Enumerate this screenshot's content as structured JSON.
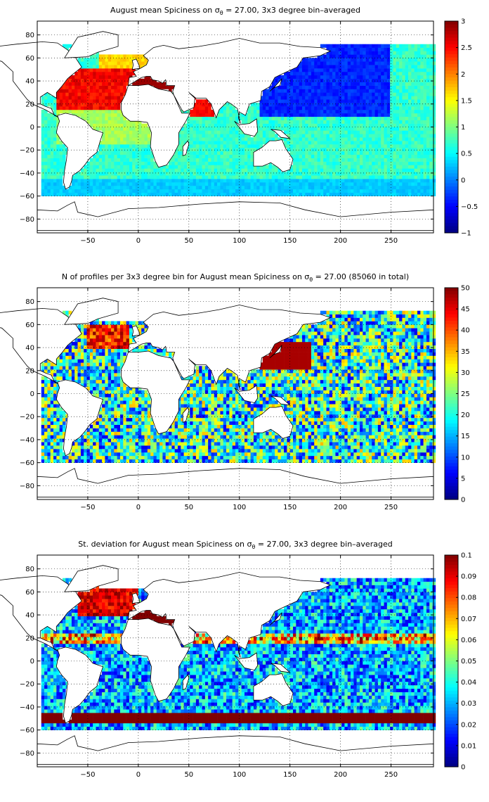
{
  "chart_data": [
    {
      "type": "heatmap",
      "title_main": "August mean Spiciness on ",
      "title_sigma": "σ",
      "title_sub": "θ",
      "title_rest": " = 27.00, 3x3 degree bin–averaged",
      "xlim": [
        -100,
        292
      ],
      "ylim": [
        -92,
        92
      ],
      "xticks": [
        -50,
        0,
        50,
        100,
        150,
        200,
        250
      ],
      "xticklabels": [
        "−50",
        "0",
        "50",
        "100",
        "150",
        "200",
        "250"
      ],
      "yticks": [
        80,
        60,
        40,
        20,
        0,
        -20,
        -40,
        -60,
        -80
      ],
      "yticklabels": [
        "80",
        "60",
        "40",
        "20",
        "0",
        "−20",
        "−40",
        "−60",
        "−80"
      ],
      "grid": true,
      "colormap": "jet",
      "clim": [
        -1,
        3
      ],
      "cticks": [
        3,
        2.5,
        2,
        1.5,
        1,
        0.5,
        0,
        -0.5,
        -1
      ],
      "cticklabels": [
        "3",
        "2.5",
        "2",
        "1.5",
        "1",
        "0.5",
        "0",
        "−0.5",
        "−1"
      ],
      "bin_size_deg": 3
    },
    {
      "type": "heatmap",
      "title_main": "N of profiles per 3x3 degree bin for August mean Spiciness on ",
      "title_sigma": "σ",
      "title_sub": "θ",
      "title_rest": " = 27.00 (85060 in total)",
      "xlim": [
        -100,
        292
      ],
      "ylim": [
        -92,
        92
      ],
      "xticks": [
        -50,
        0,
        50,
        100,
        150,
        200,
        250
      ],
      "xticklabels": [
        "−50",
        "0",
        "50",
        "100",
        "150",
        "200",
        "250"
      ],
      "yticks": [
        80,
        60,
        40,
        20,
        0,
        -20,
        -40,
        -60,
        -80
      ],
      "yticklabels": [
        "80",
        "60",
        "40",
        "20",
        "0",
        "−20",
        "−40",
        "−60",
        "−80"
      ],
      "grid": true,
      "colormap": "jet",
      "clim": [
        0,
        50
      ],
      "cticks": [
        50,
        45,
        40,
        35,
        30,
        25,
        20,
        15,
        10,
        5,
        0
      ],
      "cticklabels": [
        "50",
        "45",
        "40",
        "35",
        "30",
        "25",
        "20",
        "15",
        "10",
        "5",
        "0"
      ],
      "bin_size_deg": 3
    },
    {
      "type": "heatmap",
      "title_main": "St. deviation for August mean Spiciness on ",
      "title_sigma": "σ",
      "title_sub": "θ",
      "title_rest": " = 27.00, 3x3 degree bin–averaged",
      "xlim": [
        -100,
        292
      ],
      "ylim": [
        -92,
        92
      ],
      "xticks": [
        -50,
        0,
        50,
        100,
        150,
        200,
        250
      ],
      "xticklabels": [
        "−50",
        "0",
        "50",
        "100",
        "150",
        "200",
        "250"
      ],
      "yticks": [
        80,
        60,
        40,
        20,
        0,
        -20,
        -40,
        -60,
        -80
      ],
      "yticklabels": [
        "80",
        "60",
        "40",
        "20",
        "0",
        "−20",
        "−40",
        "−60",
        "−80"
      ],
      "grid": true,
      "colormap": "jet",
      "clim": [
        0,
        0.1
      ],
      "cticks": [
        0.1,
        0.09,
        0.08,
        0.07,
        0.06,
        0.05,
        0.04,
        0.03,
        0.02,
        0.01,
        0
      ],
      "cticklabels": [
        "0.1",
        "0.09",
        "0.08",
        "0.07",
        "0.06",
        "0.05",
        "0.04",
        "0.03",
        "0.02",
        "0.01",
        "0"
      ],
      "bin_size_deg": 3
    }
  ]
}
